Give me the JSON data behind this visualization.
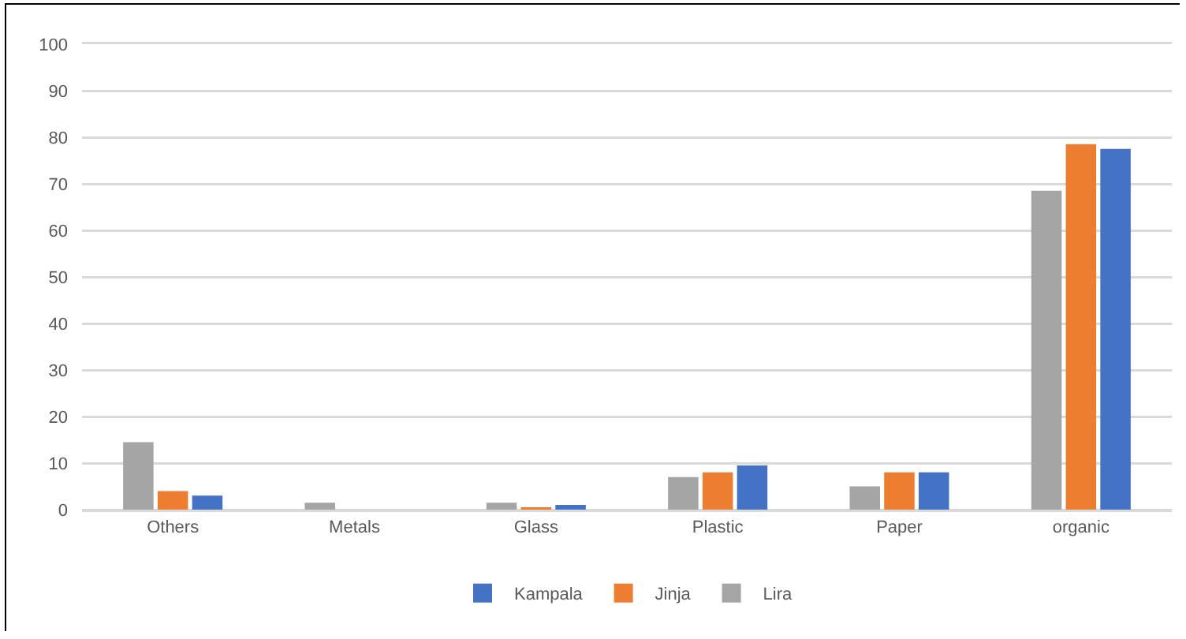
{
  "chart_data": {
    "type": "bar",
    "categories": [
      "Others",
      "Metals",
      "Glass",
      "Plastic",
      "Paper",
      "organic"
    ],
    "series": [
      {
        "name": "Lira",
        "color": "#a5a5a5",
        "values": [
          14.5,
          1.5,
          1.5,
          7,
          5,
          68.5
        ]
      },
      {
        "name": "Jinja",
        "color": "#ed7d31",
        "values": [
          4,
          0,
          0.5,
          8,
          8,
          78.5
        ]
      },
      {
        "name": "Kampala",
        "color": "#4472c4",
        "values": [
          3,
          0,
          1,
          9.5,
          8,
          77.5
        ]
      }
    ],
    "ylim": [
      0,
      100
    ],
    "yticks": [
      0,
      10,
      20,
      30,
      40,
      50,
      60,
      70,
      80,
      90,
      100
    ],
    "grid": "y",
    "legend": "bottom"
  }
}
